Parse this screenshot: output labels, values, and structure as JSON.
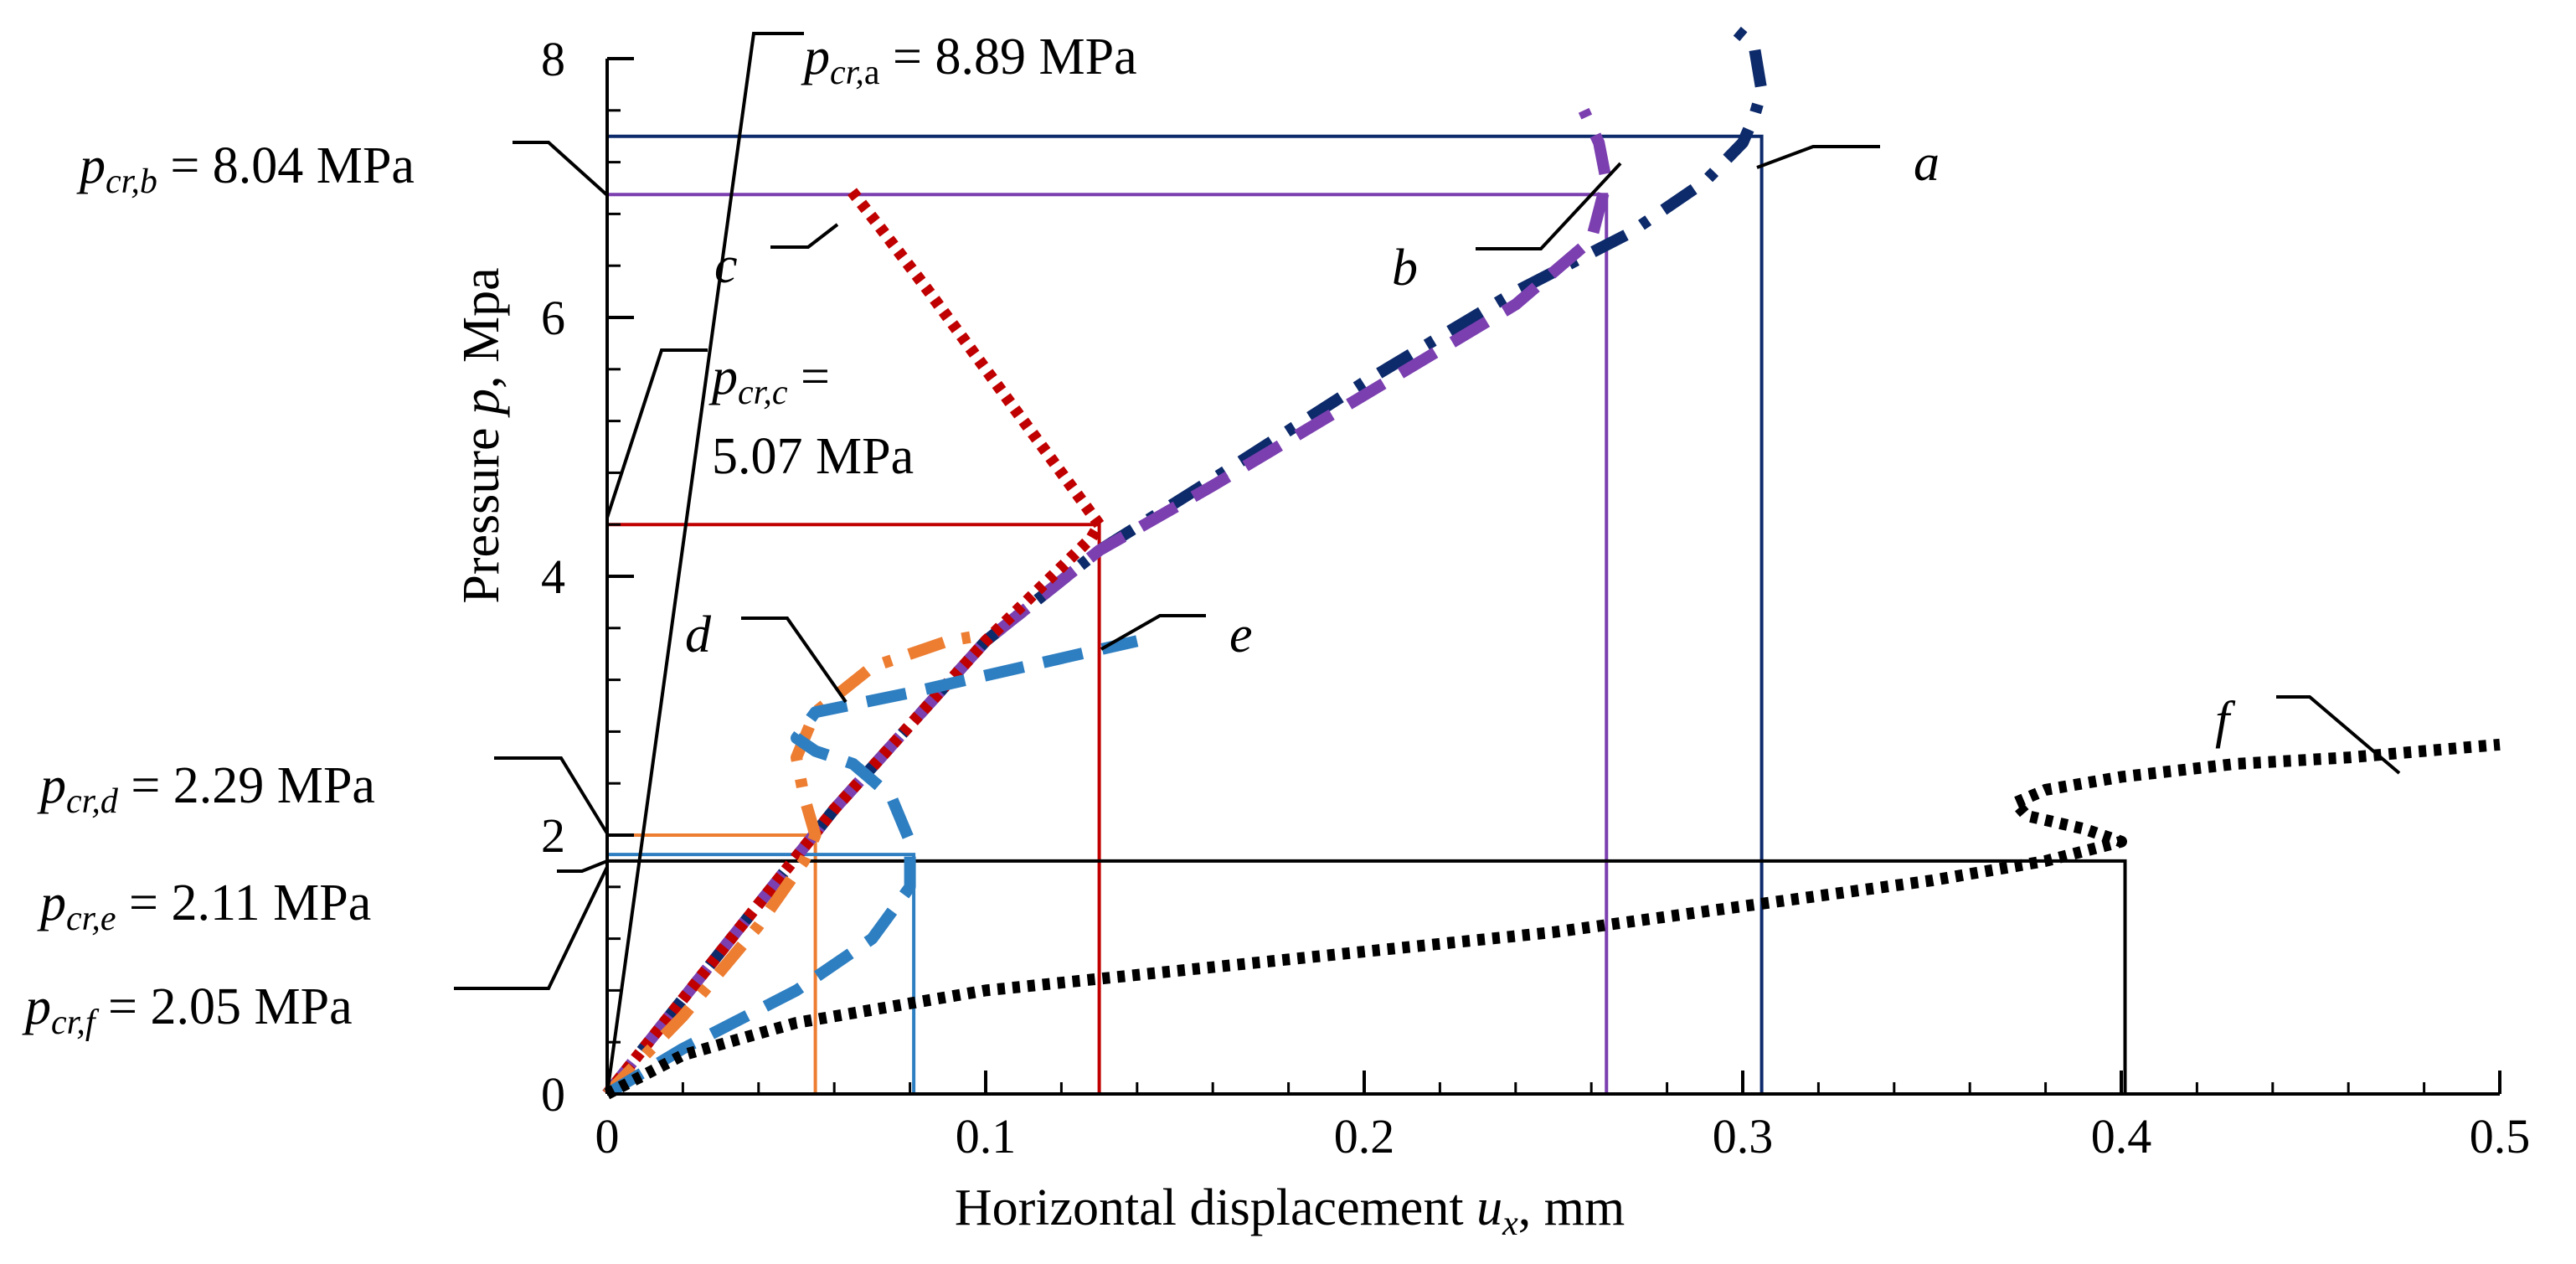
{
  "chart_data": {
    "type": "line",
    "xlabel_parts": [
      "Horizontal displacement ",
      "u",
      "x",
      ", mm"
    ],
    "ylabel_parts": [
      "Pressure ",
      "p",
      ", Mpa"
    ],
    "xlim": [
      0,
      0.5
    ],
    "ylim": [
      0,
      8
    ],
    "x_ticks": [
      {
        "value": 0,
        "label": "0"
      },
      {
        "value": 0.1,
        "label": "0.1"
      },
      {
        "value": 0.2,
        "label": "0.2"
      },
      {
        "value": 0.3,
        "label": "0.3"
      },
      {
        "value": 0.4,
        "label": "0.4"
      },
      {
        "value": 0.5,
        "label": "0.5"
      }
    ],
    "y_ticks": [
      {
        "value": 0,
        "label": "0"
      },
      {
        "value": 2,
        "label": "2"
      },
      {
        "value": 4,
        "label": "4"
      },
      {
        "value": 6,
        "label": "6"
      },
      {
        "value": 8,
        "label": "8"
      }
    ],
    "grid": false,
    "series": [
      {
        "name": "a",
        "color": "#0d2a6b",
        "dash": "dash-dot",
        "x": [
          0,
          0.03,
          0.06,
          0.1,
          0.13,
          0.16,
          0.2,
          0.24,
          0.27,
          0.29,
          0.3,
          0.303,
          0.305,
          0.303,
          0.295
        ],
        "y": [
          0,
          1.1,
          2.2,
          3.5,
          4.2,
          4.75,
          5.5,
          6.2,
          6.65,
          7.05,
          7.35,
          7.55,
          7.75,
          8.1,
          8.3
        ]
      },
      {
        "name": "b",
        "color": "#7b3fb0",
        "dash": "long-dash",
        "x": [
          0,
          0.03,
          0.06,
          0.1,
          0.13,
          0.16,
          0.2,
          0.24,
          0.26,
          0.264,
          0.262,
          0.258
        ],
        "y": [
          0,
          1.1,
          2.2,
          3.5,
          4.2,
          4.7,
          5.4,
          6.1,
          6.6,
          7.05,
          7.35,
          7.6
        ]
      },
      {
        "name": "c",
        "color": "#c00000",
        "dash": "dotted",
        "x": [
          0,
          0.03,
          0.06,
          0.1,
          0.128,
          0.13,
          0.115,
          0.1,
          0.085,
          0.072,
          0.064
        ],
        "y": [
          0,
          1.1,
          2.2,
          3.5,
          4.3,
          4.4,
          5.0,
          5.6,
          6.2,
          6.7,
          7.0
        ]
      },
      {
        "name": "d",
        "color": "#ed7d31",
        "dash": "dash-dot",
        "x": [
          0,
          0.02,
          0.04,
          0.052,
          0.055,
          0.052,
          0.05,
          0.055,
          0.07,
          0.09,
          0.1
        ],
        "y": [
          0,
          0.6,
          1.3,
          1.8,
          2.0,
          2.3,
          2.6,
          2.95,
          3.3,
          3.5,
          3.55
        ]
      },
      {
        "name": "e",
        "color": "#2e7fc2",
        "dash": "long-dash",
        "x": [
          0,
          0.02,
          0.05,
          0.07,
          0.08,
          0.08,
          0.075,
          0.065,
          0.055,
          0.05,
          0.055,
          0.08,
          0.11,
          0.14
        ],
        "y": [
          0,
          0.35,
          0.8,
          1.2,
          1.6,
          1.95,
          2.3,
          2.55,
          2.65,
          2.75,
          2.95,
          3.1,
          3.3,
          3.5
        ]
      },
      {
        "name": "f",
        "color": "#000000",
        "dash": "dotted",
        "x": [
          0,
          0.02,
          0.05,
          0.1,
          0.15,
          0.2,
          0.25,
          0.3,
          0.35,
          0.38,
          0.4,
          0.39,
          0.375,
          0.372,
          0.38,
          0.4,
          0.43,
          0.46,
          0.5
        ],
        "y": [
          0,
          0.3,
          0.55,
          0.8,
          0.95,
          1.1,
          1.25,
          1.45,
          1.65,
          1.8,
          1.95,
          2.05,
          2.15,
          2.25,
          2.35,
          2.45,
          2.55,
          2.6,
          2.7
        ]
      }
    ],
    "critical_levels": [
      {
        "series": "a",
        "p": 7.4,
        "ux": 0.305,
        "color": "#0d2a6b",
        "text_main": "p",
        "text_sub": "cr,",
        "text_sub2": "a",
        "text_value": " = 8.89 MPa"
      },
      {
        "series": "b",
        "p": 6.95,
        "ux": 0.264,
        "color": "#7b3fb0",
        "text_main": "p",
        "text_sub": "cr,b",
        "text_sub2": "",
        "text_value": " = 8.04 MPa"
      },
      {
        "series": "c",
        "p": 4.4,
        "ux": 0.13,
        "color": "#c00000",
        "text_main": "p",
        "text_sub": "cr,c",
        "text_sub2": "",
        "text_value": " =",
        "text_value_line2": "5.07 MPa"
      },
      {
        "series": "d",
        "p": 2.0,
        "ux": 0.055,
        "color": "#ed7d31",
        "text_main": "p",
        "text_sub": "cr,d",
        "text_sub2": "",
        "text_value": " = 2.29 MPa"
      },
      {
        "series": "e",
        "p": 1.85,
        "ux": 0.081,
        "color": "#2e7fc2",
        "text_main": "p",
        "text_sub": "cr,e",
        "text_sub2": "",
        "text_value": " = 2.11 MPa"
      },
      {
        "series": "f",
        "p": 1.8,
        "ux": 0.401,
        "color": "#000000",
        "text_main": "p",
        "text_sub": "cr,f",
        "text_sub2": "",
        "text_value": " = 2.05 MPa"
      }
    ],
    "curve_labels": [
      "a",
      "b",
      "c",
      "d",
      "e",
      "f"
    ]
  }
}
